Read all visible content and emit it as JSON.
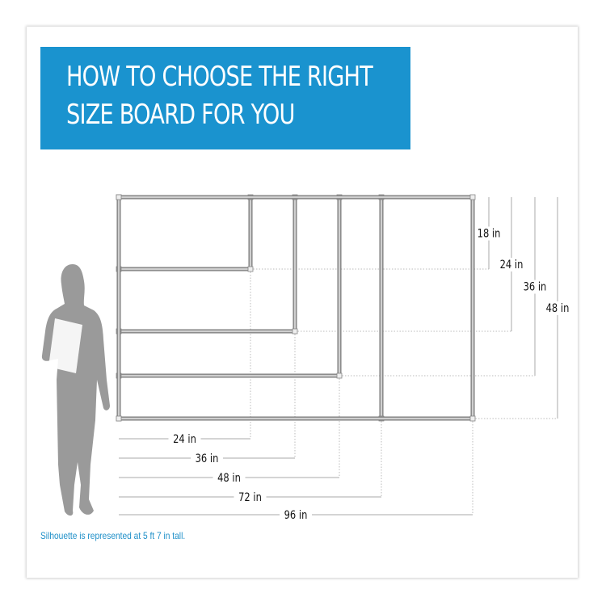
{
  "header": {
    "title_line1": "HOW TO CHOOSE THE RIGHT",
    "title_line2": "SIZE BOARD FOR YOU"
  },
  "colors": {
    "banner": "#1a93cf",
    "note": "#1e8fc8",
    "silhouette": "#9a9a9a",
    "frame": "#a8a8a8"
  },
  "boards": [
    {
      "height_in": 18,
      "width_in": 24
    },
    {
      "height_in": 24,
      "width_in": 36
    },
    {
      "height_in": 36,
      "width_in": 48
    },
    {
      "height_in": 48,
      "width_in": 72
    },
    {
      "height_in": 48,
      "width_in": 96
    }
  ],
  "height_labels": [
    "18 in",
    "24 in",
    "36 in",
    "48 in"
  ],
  "width_labels": [
    "24 in",
    "36 in",
    "48 in",
    "72 in",
    "96 in"
  ],
  "footnote": "Silhouette is represented at 5 ft 7 in tall.",
  "icons": {
    "figure": "woman-silhouette-icon"
  }
}
